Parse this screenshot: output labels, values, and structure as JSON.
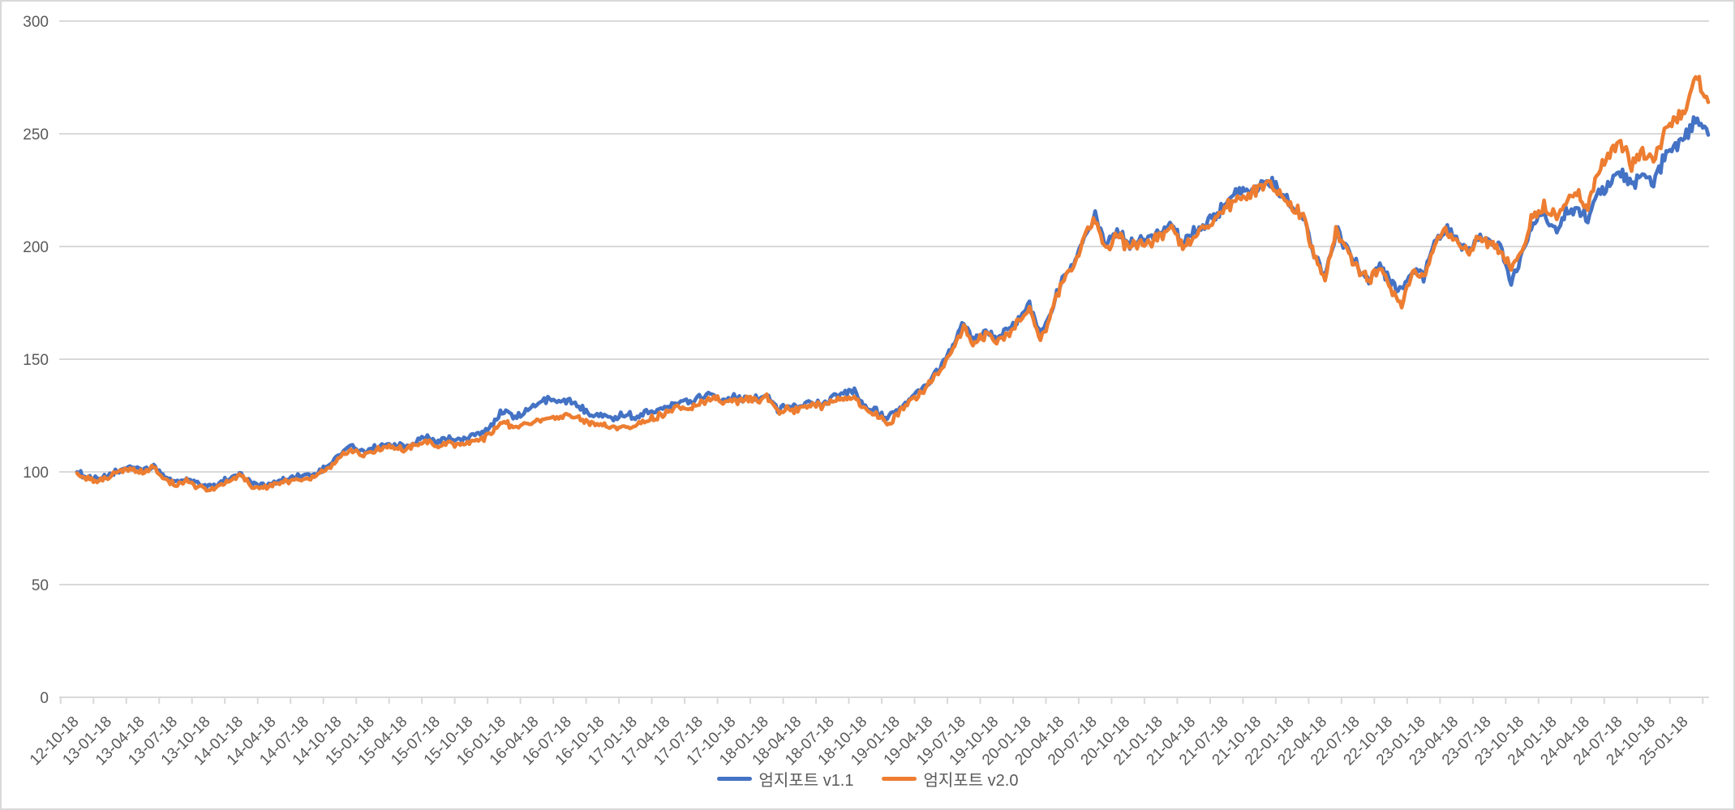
{
  "chart_data": {
    "type": "line",
    "title": "",
    "xlabel": "",
    "ylabel": "",
    "y_ticks": [
      0,
      50,
      100,
      150,
      200,
      250,
      300
    ],
    "y_range": [
      0,
      300
    ],
    "grid": "horizontal",
    "gridline_color": "#D9D9D9",
    "axis_label_color": "#595959",
    "legend_position": "bottom-center",
    "x_tick_step_months": 3,
    "x_tick_labels": [
      "12-10-18",
      "13-01-18",
      "13-04-18",
      "13-07-18",
      "13-10-18",
      "14-01-18",
      "14-04-18",
      "14-07-18",
      "14-10-18",
      "15-01-18",
      "15-04-18",
      "15-07-18",
      "15-10-18",
      "16-01-18",
      "16-04-18",
      "16-07-18",
      "16-10-18",
      "17-01-18",
      "17-04-18",
      "17-07-18",
      "17-10-18",
      "18-01-18",
      "18-04-18",
      "18-07-18",
      "18-10-18",
      "19-01-18",
      "19-04-18",
      "19-07-18",
      "19-10-18",
      "20-01-18",
      "20-04-18",
      "20-07-18",
      "20-10-18",
      "21-01-18",
      "21-04-18",
      "21-07-18",
      "21-10-18",
      "22-01-18",
      "22-04-18",
      "22-07-18",
      "22-10-18",
      "23-01-18",
      "23-04-18",
      "23-07-18",
      "23-10-18",
      "24-01-18",
      "24-04-18",
      "24-07-18",
      "24-10-18",
      "25-01-18"
    ],
    "series": [
      {
        "name": "엄지포트 v1.1",
        "color": "#4472C4",
        "values": [
          100,
          97.5,
          96.5,
          98.5,
          101,
          102.5,
          100.5,
          102.5,
          97.5,
          95.5,
          97,
          95,
          93.5,
          95,
          97.5,
          99,
          95,
          94,
          95.5,
          96.5,
          97.5,
          98.5,
          99.5,
          103,
          108,
          111.5,
          109,
          110.5,
          111.5,
          112.5,
          111,
          113.5,
          115.5,
          113,
          115,
          113.5,
          116,
          117.5,
          122,
          127.5,
          124,
          127,
          130,
          132.5,
          130.5,
          131.5,
          129,
          126,
          125.5,
          124,
          125.5,
          124.5,
          126.5,
          128,
          129.5,
          131.5,
          130.5,
          133.5,
          134.5,
          132.5,
          133.5,
          132.5,
          133,
          134,
          128,
          129.5,
          128.5,
          131,
          130,
          132.5,
          134.5,
          135.5,
          129,
          127,
          123.5,
          127,
          132,
          136,
          141,
          147,
          157,
          165.5,
          158,
          163,
          160,
          162.5,
          168,
          174,
          160.5,
          172,
          186,
          193,
          205,
          214,
          200,
          206.5,
          201,
          203.5,
          203,
          206,
          209.5,
          201,
          206,
          210,
          213.5,
          218.5,
          224,
          222.5,
          227,
          228.5,
          223.5,
          217.5,
          213.5,
          197.5,
          186,
          207.5,
          198.5,
          191,
          186,
          192.5,
          183,
          180.5,
          191,
          186.5,
          202,
          208,
          203,
          198,
          204.5,
          201,
          199,
          184,
          196.5,
          210,
          214.5,
          207,
          215,
          217.5,
          212,
          223.5,
          228.5,
          232.5,
          227,
          231.5,
          228.5,
          239.5,
          245.5,
          249,
          257.5,
          249.5
        ]
      },
      {
        "name": "엄지포트 v2.0",
        "color": "#ED7D31",
        "values": [
          99.5,
          97,
          96,
          98,
          100,
          101.5,
          99.5,
          102,
          96.5,
          94.5,
          96,
          93.5,
          92,
          93.5,
          96.5,
          98.5,
          93.5,
          92.5,
          94.5,
          95.5,
          96.5,
          97.5,
          98.5,
          102,
          107,
          110,
          107.5,
          109,
          110.5,
          111,
          109.5,
          112,
          113.5,
          111.5,
          113,
          112,
          113.5,
          114.5,
          118,
          122.5,
          119.5,
          121.5,
          123,
          124.5,
          123.5,
          124.5,
          123,
          121.5,
          121,
          119.5,
          120.5,
          120,
          122.5,
          124.5,
          126,
          128,
          128,
          131,
          132.5,
          131,
          132,
          131.5,
          132,
          133,
          126.5,
          128,
          127,
          129.5,
          129,
          131,
          132.5,
          133,
          127,
          125.5,
          121.5,
          125.5,
          130.5,
          134.5,
          139.5,
          145.5,
          155.5,
          164,
          156,
          161.5,
          158,
          161,
          166.5,
          172.5,
          158.5,
          170,
          184.5,
          191.5,
          203.5,
          212.5,
          198,
          205,
          199.5,
          202,
          201.5,
          204.5,
          208,
          199.5,
          204.5,
          208.5,
          212,
          217,
          223,
          221.5,
          226.5,
          228,
          223,
          217,
          213,
          197,
          184.5,
          206.5,
          197.5,
          190,
          185,
          192,
          182,
          174,
          190,
          185.5,
          201,
          207.5,
          202.5,
          197,
          204,
          200.5,
          198,
          191,
          199,
          213.5,
          218,
          212.5,
          220,
          223,
          218,
          234,
          241.5,
          246,
          236,
          242,
          238,
          251,
          257.5,
          262,
          274.5,
          264
        ]
      }
    ]
  }
}
